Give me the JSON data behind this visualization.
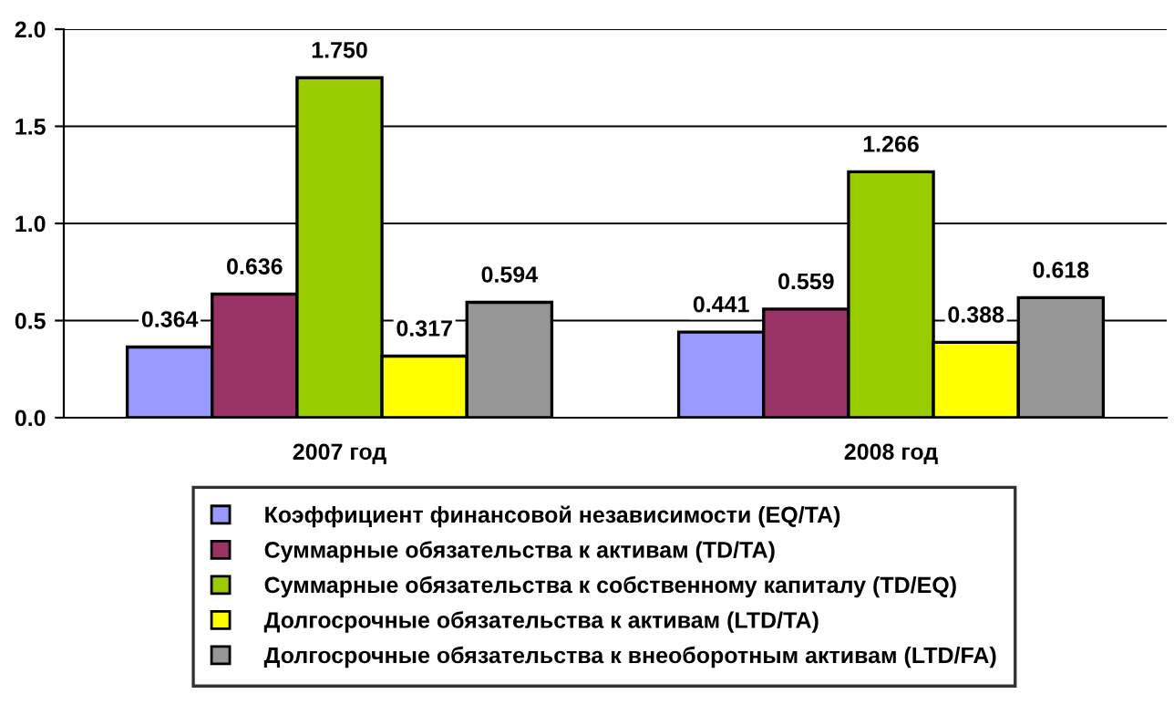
{
  "chart_data": {
    "type": "bar",
    "categories": [
      "2007 год",
      "2008 год"
    ],
    "series": [
      {
        "name": "Коэффициент финансовой независимости (EQ/TA)",
        "color": "#9999ff",
        "values": [
          0.364,
          0.441
        ],
        "value_labels": [
          "0.364",
          "0.441"
        ]
      },
      {
        "name": "Суммарные обязательства к активам (TD/TA)",
        "color": "#993366",
        "values": [
          0.636,
          0.559
        ],
        "value_labels": [
          "0.636",
          "0.559"
        ]
      },
      {
        "name": "Суммарные обязательства к собственному капиталу (TD/EQ)",
        "color": "#99cc00",
        "values": [
          1.75,
          1.266
        ],
        "value_labels": [
          "1.750",
          "1.266"
        ]
      },
      {
        "name": "Долгосрочные обязательства к активам (LTD/TA)",
        "color": "#ffff00",
        "values": [
          0.317,
          0.388
        ],
        "value_labels": [
          "0.317",
          "0.388"
        ]
      },
      {
        "name": "Долгосрочные обязательства к внеоборотным активам (LTD/FA)",
        "color": "#969696",
        "values": [
          0.594,
          0.618
        ],
        "value_labels": [
          "0.594",
          "0.618"
        ]
      }
    ],
    "ylim": [
      0,
      2.0
    ],
    "yticks": [
      {
        "value": 0,
        "label": "0.0"
      },
      {
        "value": 0.5,
        "label": "0.5"
      },
      {
        "value": 1.0,
        "label": "1.0"
      },
      {
        "value": 1.5,
        "label": "1.5"
      },
      {
        "value": 2.0,
        "label": "2.0"
      }
    ],
    "grid": "y",
    "legend": "bottom"
  }
}
